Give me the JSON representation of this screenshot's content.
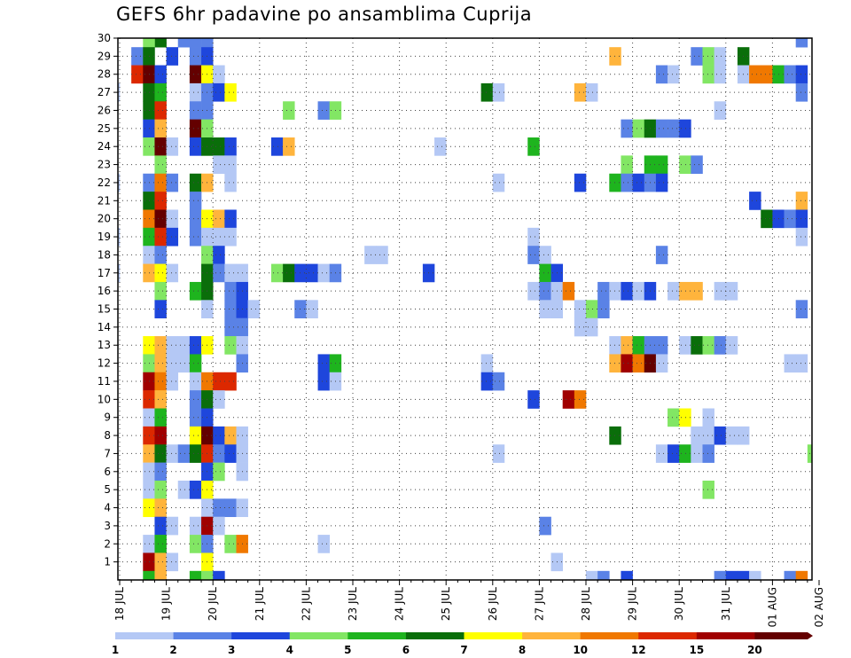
{
  "chart_data": {
    "type": "heatmap",
    "title": "GEFS 6hr padavine po ansamblima Cuprija",
    "x_tick_labels": [
      "18 JUL",
      "19 JUL",
      "20 JUL",
      "21 JUL",
      "22 JUL",
      "23 JUL",
      "24 JUL",
      "25 JUL",
      "26 JUL",
      "27 JUL",
      "28 JUL",
      "29 JUL",
      "30 JUL",
      "31 JUL",
      "01 AUG",
      "02 AUG"
    ],
    "y_range": [
      0,
      30
    ],
    "y_tick_labels": [
      "1",
      "2",
      "3",
      "4",
      "5",
      "6",
      "7",
      "8",
      "9",
      "10",
      "11",
      "12",
      "13",
      "14",
      "15",
      "16",
      "17",
      "18",
      "19",
      "20",
      "21",
      "22",
      "23",
      "24",
      "25",
      "26",
      "27",
      "28",
      "29",
      "30"
    ],
    "time_steps_per_day": 4,
    "grid": "dotted",
    "colorbar": {
      "thresholds": [
        "1",
        "2",
        "3",
        "4",
        "5",
        "6",
        "7",
        "8",
        "10",
        "12",
        "15",
        "20"
      ],
      "colors": [
        "#b4c8f5",
        "#5a82e6",
        "#1e46dc",
        "#82e664",
        "#1eb41e",
        "#0a6e0a",
        "#ffff00",
        "#ffb43c",
        "#f07800",
        "#dc2800",
        "#a00000",
        "#640000"
      ]
    },
    "cells": [
      [
        30,
        3,
        6
      ],
      [
        30,
        2,
        4
      ],
      [
        30,
        5,
        2
      ],
      [
        30,
        6,
        2
      ],
      [
        30,
        7,
        2
      ],
      [
        30,
        58,
        2
      ],
      [
        29,
        1,
        2
      ],
      [
        29,
        2,
        6
      ],
      [
        29,
        4,
        3
      ],
      [
        29,
        6,
        2
      ],
      [
        29,
        7,
        3
      ],
      [
        29,
        42,
        8
      ],
      [
        29,
        49,
        2
      ],
      [
        29,
        50,
        4
      ],
      [
        29,
        51,
        1
      ],
      [
        29,
        53,
        6
      ],
      [
        28,
        1,
        10
      ],
      [
        28,
        2,
        12
      ],
      [
        28,
        3,
        3
      ],
      [
        28,
        6,
        12
      ],
      [
        28,
        7,
        7
      ],
      [
        28,
        8,
        1
      ],
      [
        28,
        46,
        2
      ],
      [
        28,
        47,
        1
      ],
      [
        28,
        50,
        4
      ],
      [
        28,
        51,
        1
      ],
      [
        28,
        53,
        1
      ],
      [
        28,
        54,
        9
      ],
      [
        28,
        55,
        9
      ],
      [
        28,
        56,
        5
      ],
      [
        28,
        57,
        2
      ],
      [
        28,
        58,
        3
      ],
      [
        27,
        -1,
        1
      ],
      [
        27,
        2,
        6
      ],
      [
        27,
        3,
        5
      ],
      [
        27,
        6,
        1
      ],
      [
        27,
        7,
        2
      ],
      [
        27,
        8,
        3
      ],
      [
        27,
        9,
        7
      ],
      [
        27,
        31,
        6
      ],
      [
        27,
        32,
        1
      ],
      [
        27,
        39,
        8
      ],
      [
        27,
        40,
        1
      ],
      [
        27,
        58,
        2
      ],
      [
        26,
        2,
        6
      ],
      [
        26,
        3,
        10
      ],
      [
        26,
        6,
        2
      ],
      [
        26,
        7,
        2
      ],
      [
        26,
        14,
        4
      ],
      [
        26,
        17,
        2
      ],
      [
        26,
        18,
        4
      ],
      [
        26,
        51,
        1
      ],
      [
        25,
        2,
        3
      ],
      [
        25,
        3,
        8
      ],
      [
        25,
        6,
        12
      ],
      [
        25,
        7,
        4
      ],
      [
        25,
        43,
        2
      ],
      [
        25,
        44,
        4
      ],
      [
        25,
        45,
        6
      ],
      [
        25,
        46,
        2
      ],
      [
        25,
        47,
        2
      ],
      [
        25,
        48,
        3
      ],
      [
        24,
        2,
        4
      ],
      [
        24,
        3,
        12
      ],
      [
        24,
        4,
        1
      ],
      [
        24,
        6,
        3
      ],
      [
        24,
        7,
        6
      ],
      [
        24,
        8,
        6
      ],
      [
        24,
        9,
        3
      ],
      [
        24,
        13,
        3
      ],
      [
        24,
        14,
        8
      ],
      [
        24,
        27,
        1
      ],
      [
        24,
        35,
        5
      ],
      [
        23,
        3,
        4
      ],
      [
        23,
        8,
        1
      ],
      [
        23,
        9,
        1
      ],
      [
        23,
        43,
        4
      ],
      [
        23,
        45,
        5
      ],
      [
        23,
        46,
        5
      ],
      [
        23,
        48,
        4
      ],
      [
        23,
        49,
        2
      ],
      [
        22,
        -1,
        1
      ],
      [
        22,
        2,
        2
      ],
      [
        22,
        3,
        9
      ],
      [
        22,
        4,
        2
      ],
      [
        22,
        6,
        6
      ],
      [
        22,
        7,
        8
      ],
      [
        22,
        9,
        1
      ],
      [
        22,
        32,
        1
      ],
      [
        22,
        39,
        3
      ],
      [
        22,
        42,
        5
      ],
      [
        22,
        43,
        2
      ],
      [
        22,
        44,
        3
      ],
      [
        22,
        45,
        2
      ],
      [
        22,
        46,
        3
      ],
      [
        21,
        2,
        6
      ],
      [
        21,
        3,
        10
      ],
      [
        21,
        6,
        2
      ],
      [
        21,
        54,
        3
      ],
      [
        21,
        58,
        8
      ],
      [
        20,
        2,
        9
      ],
      [
        20,
        3,
        12
      ],
      [
        20,
        4,
        1
      ],
      [
        20,
        6,
        2
      ],
      [
        20,
        7,
        7
      ],
      [
        20,
        8,
        8
      ],
      [
        20,
        9,
        3
      ],
      [
        20,
        55,
        6
      ],
      [
        20,
        56,
        3
      ],
      [
        20,
        57,
        2
      ],
      [
        20,
        58,
        3
      ],
      [
        19,
        -1,
        1
      ],
      [
        19,
        2,
        5
      ],
      [
        19,
        3,
        10
      ],
      [
        19,
        4,
        3
      ],
      [
        19,
        6,
        2
      ],
      [
        19,
        7,
        1
      ],
      [
        19,
        8,
        1
      ],
      [
        19,
        9,
        1
      ],
      [
        19,
        35,
        1
      ],
      [
        19,
        58,
        1
      ],
      [
        18,
        2,
        1
      ],
      [
        18,
        3,
        2
      ],
      [
        18,
        7,
        4
      ],
      [
        18,
        8,
        3
      ],
      [
        18,
        21,
        1
      ],
      [
        18,
        22,
        1
      ],
      [
        18,
        35,
        2
      ],
      [
        18,
        36,
        1
      ],
      [
        18,
        46,
        2
      ],
      [
        17,
        -1,
        1
      ],
      [
        17,
        2,
        8
      ],
      [
        17,
        3,
        7
      ],
      [
        17,
        4,
        1
      ],
      [
        17,
        7,
        6
      ],
      [
        17,
        8,
        2
      ],
      [
        17,
        9,
        1
      ],
      [
        17,
        10,
        1
      ],
      [
        17,
        13,
        4
      ],
      [
        17,
        14,
        6
      ],
      [
        17,
        15,
        3
      ],
      [
        17,
        16,
        3
      ],
      [
        17,
        17,
        1
      ],
      [
        17,
        18,
        2
      ],
      [
        17,
        26,
        3
      ],
      [
        17,
        36,
        5
      ],
      [
        17,
        37,
        3
      ],
      [
        16,
        3,
        4
      ],
      [
        16,
        6,
        5
      ],
      [
        16,
        7,
        6
      ],
      [
        16,
        9,
        2
      ],
      [
        16,
        10,
        3
      ],
      [
        16,
        35,
        1
      ],
      [
        16,
        36,
        2
      ],
      [
        16,
        37,
        1
      ],
      [
        16,
        38,
        9
      ],
      [
        16,
        41,
        2
      ],
      [
        16,
        42,
        1
      ],
      [
        16,
        43,
        3
      ],
      [
        16,
        44,
        1
      ],
      [
        16,
        45,
        3
      ],
      [
        16,
        47,
        1
      ],
      [
        16,
        48,
        8
      ],
      [
        16,
        49,
        8
      ],
      [
        16,
        51,
        1
      ],
      [
        16,
        52,
        1
      ],
      [
        15,
        3,
        3
      ],
      [
        15,
        7,
        1
      ],
      [
        15,
        9,
        2
      ],
      [
        15,
        10,
        3
      ],
      [
        15,
        11,
        1
      ],
      [
        15,
        15,
        2
      ],
      [
        15,
        16,
        1
      ],
      [
        15,
        36,
        1
      ],
      [
        15,
        37,
        1
      ],
      [
        15,
        39,
        1
      ],
      [
        15,
        40,
        4
      ],
      [
        15,
        41,
        2
      ],
      [
        15,
        58,
        2
      ],
      [
        14,
        9,
        2
      ],
      [
        14,
        10,
        2
      ],
      [
        14,
        39,
        1
      ],
      [
        14,
        40,
        1
      ],
      [
        13,
        2,
        7
      ],
      [
        13,
        3,
        8
      ],
      [
        13,
        4,
        1
      ],
      [
        13,
        5,
        1
      ],
      [
        13,
        6,
        3
      ],
      [
        13,
        7,
        7
      ],
      [
        13,
        9,
        4
      ],
      [
        13,
        10,
        1
      ],
      [
        13,
        42,
        1
      ],
      [
        13,
        43,
        8
      ],
      [
        13,
        44,
        5
      ],
      [
        13,
        45,
        2
      ],
      [
        13,
        46,
        2
      ],
      [
        13,
        48,
        1
      ],
      [
        13,
        49,
        6
      ],
      [
        13,
        50,
        4
      ],
      [
        13,
        51,
        2
      ],
      [
        13,
        52,
        1
      ],
      [
        12,
        2,
        4
      ],
      [
        12,
        3,
        8
      ],
      [
        12,
        4,
        1
      ],
      [
        12,
        5,
        1
      ],
      [
        12,
        6,
        5
      ],
      [
        12,
        10,
        2
      ],
      [
        12,
        17,
        3
      ],
      [
        12,
        18,
        5
      ],
      [
        12,
        31,
        1
      ],
      [
        12,
        42,
        8
      ],
      [
        12,
        43,
        11
      ],
      [
        12,
        44,
        9
      ],
      [
        12,
        45,
        12
      ],
      [
        12,
        46,
        1
      ],
      [
        12,
        57,
        1
      ],
      [
        12,
        58,
        1
      ],
      [
        11,
        2,
        11
      ],
      [
        11,
        3,
        9
      ],
      [
        11,
        4,
        1
      ],
      [
        11,
        6,
        1
      ],
      [
        11,
        7,
        9
      ],
      [
        11,
        8,
        10
      ],
      [
        11,
        9,
        10
      ],
      [
        11,
        17,
        3
      ],
      [
        11,
        18,
        1
      ],
      [
        11,
        31,
        3
      ],
      [
        11,
        32,
        2
      ],
      [
        10,
        2,
        10
      ],
      [
        10,
        3,
        8
      ],
      [
        10,
        6,
        2
      ],
      [
        10,
        7,
        6
      ],
      [
        10,
        8,
        1
      ],
      [
        10,
        35,
        3
      ],
      [
        10,
        38,
        11
      ],
      [
        10,
        39,
        9
      ],
      [
        9,
        2,
        1
      ],
      [
        9,
        3,
        5
      ],
      [
        9,
        6,
        2
      ],
      [
        9,
        7,
        3
      ],
      [
        9,
        47,
        4
      ],
      [
        9,
        48,
        7
      ],
      [
        9,
        50,
        1
      ],
      [
        8,
        2,
        10
      ],
      [
        8,
        3,
        11
      ],
      [
        8,
        6,
        7
      ],
      [
        8,
        7,
        12
      ],
      [
        8,
        8,
        3
      ],
      [
        8,
        9,
        8
      ],
      [
        8,
        10,
        1
      ],
      [
        8,
        42,
        6
      ],
      [
        8,
        49,
        1
      ],
      [
        8,
        50,
        1
      ],
      [
        8,
        51,
        3
      ],
      [
        8,
        52,
        1
      ],
      [
        8,
        53,
        1
      ],
      [
        7,
        2,
        8
      ],
      [
        7,
        3,
        6
      ],
      [
        7,
        4,
        1
      ],
      [
        7,
        5,
        2
      ],
      [
        7,
        6,
        6
      ],
      [
        7,
        7,
        10
      ],
      [
        7,
        8,
        2
      ],
      [
        7,
        9,
        3
      ],
      [
        7,
        10,
        1
      ],
      [
        7,
        32,
        1
      ],
      [
        7,
        46,
        1
      ],
      [
        7,
        47,
        3
      ],
      [
        7,
        48,
        5
      ],
      [
        7,
        49,
        1
      ],
      [
        7,
        50,
        2
      ],
      [
        7,
        59,
        4
      ],
      [
        6,
        2,
        1
      ],
      [
        6,
        3,
        2
      ],
      [
        6,
        7,
        3
      ],
      [
        6,
        8,
        4
      ],
      [
        6,
        10,
        1
      ],
      [
        5,
        2,
        1
      ],
      [
        5,
        3,
        4
      ],
      [
        5,
        5,
        1
      ],
      [
        5,
        6,
        3
      ],
      [
        5,
        7,
        7
      ],
      [
        5,
        50,
        4
      ],
      [
        4,
        2,
        7
      ],
      [
        4,
        3,
        8
      ],
      [
        4,
        7,
        1
      ],
      [
        4,
        8,
        2
      ],
      [
        4,
        9,
        2
      ],
      [
        4,
        10,
        1
      ],
      [
        3,
        3,
        3
      ],
      [
        3,
        4,
        1
      ],
      [
        3,
        6,
        1
      ],
      [
        3,
        7,
        11
      ],
      [
        3,
        8,
        1
      ],
      [
        3,
        36,
        2
      ],
      [
        2,
        2,
        1
      ],
      [
        2,
        3,
        5
      ],
      [
        2,
        6,
        4
      ],
      [
        2,
        7,
        2
      ],
      [
        2,
        9,
        4
      ],
      [
        2,
        10,
        9
      ],
      [
        2,
        17,
        1
      ],
      [
        1,
        2,
        11
      ],
      [
        1,
        3,
        8
      ],
      [
        1,
        4,
        1
      ],
      [
        1,
        7,
        7
      ],
      [
        1,
        37,
        1
      ],
      [
        0,
        2,
        5
      ],
      [
        0,
        3,
        8
      ],
      [
        0,
        6,
        5
      ],
      [
        0,
        7,
        4
      ],
      [
        0,
        8,
        3
      ],
      [
        0,
        40,
        1
      ],
      [
        0,
        41,
        2
      ],
      [
        0,
        43,
        3
      ],
      [
        0,
        51,
        2
      ],
      [
        0,
        52,
        3
      ],
      [
        0,
        53,
        3
      ],
      [
        0,
        54,
        1
      ],
      [
        0,
        57,
        2
      ],
      [
        0,
        58,
        9
      ]
    ]
  }
}
